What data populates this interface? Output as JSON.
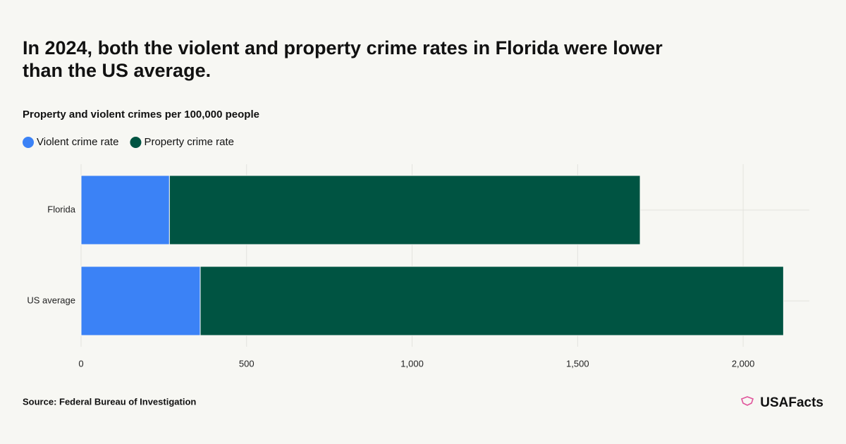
{
  "chart_data": {
    "type": "stacked-bar-horizontal",
    "title": "In 2024, both the violent and property crime rates in Florida were lower than the US average.",
    "subtitle": "Property and violent crimes per 100,000 people",
    "categories": [
      "Florida",
      "US average"
    ],
    "series": [
      {
        "name": "Violent crime rate",
        "color": "#3b82f6",
        "values": [
          267,
          360
        ]
      },
      {
        "name": "Property crime rate",
        "color": "#005442",
        "values": [
          1422,
          1762
        ]
      }
    ],
    "xlim": [
      0,
      2200
    ],
    "xticks": [
      0,
      500,
      {
        "value": 1000,
        "label": "1,000"
      },
      {
        "value": 1500,
        "label": "1,500"
      },
      {
        "value": 2000,
        "label": "2,000"
      }
    ],
    "grid": true,
    "source": "Source: Federal Bureau of Investigation",
    "logo": "USAFacts"
  }
}
